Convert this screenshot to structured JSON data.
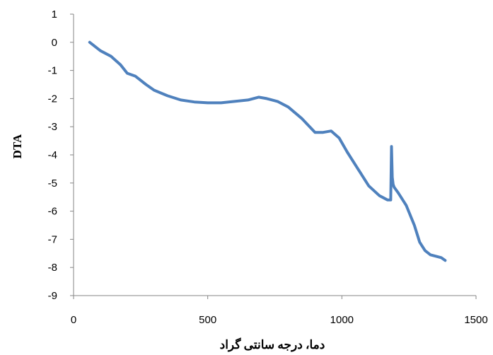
{
  "chart_data": {
    "type": "line",
    "title": "",
    "xlabel": "دما، درجه سانتی گراد",
    "ylabel": "DTA",
    "xlim": [
      0,
      1500
    ],
    "ylim": [
      -9,
      1
    ],
    "x_ticks": [
      0,
      500,
      1000,
      1500
    ],
    "y_ticks": [
      1,
      0,
      -1,
      -2,
      -3,
      -4,
      -5,
      -6,
      -7,
      -8,
      -9
    ],
    "grid": false,
    "legend": "none",
    "colors": {
      "line": "#4f81bd",
      "axis": "#868686"
    },
    "series": [
      {
        "x": [
          60,
          100,
          140,
          175,
          200,
          230,
          270,
          300,
          350,
          400,
          450,
          500,
          550,
          600,
          650,
          690,
          720,
          760,
          800,
          850,
          880,
          900,
          930,
          960,
          990,
          1020,
          1060,
          1100,
          1140,
          1170,
          1182,
          1185,
          1188,
          1191,
          1195,
          1210,
          1240,
          1270,
          1290,
          1310,
          1330,
          1350,
          1370,
          1385
        ],
        "y": [
          0.0,
          -0.3,
          -0.5,
          -0.8,
          -1.1,
          -1.2,
          -1.5,
          -1.7,
          -1.9,
          -2.05,
          -2.12,
          -2.15,
          -2.15,
          -2.1,
          -2.05,
          -1.95,
          -2.0,
          -2.1,
          -2.3,
          -2.7,
          -3.0,
          -3.2,
          -3.2,
          -3.15,
          -3.4,
          -3.9,
          -4.5,
          -5.1,
          -5.45,
          -5.6,
          -5.6,
          -3.7,
          -4.8,
          -5.05,
          -5.15,
          -5.35,
          -5.8,
          -6.5,
          -7.1,
          -7.4,
          -7.55,
          -7.6,
          -7.65,
          -7.75
        ]
      }
    ]
  }
}
